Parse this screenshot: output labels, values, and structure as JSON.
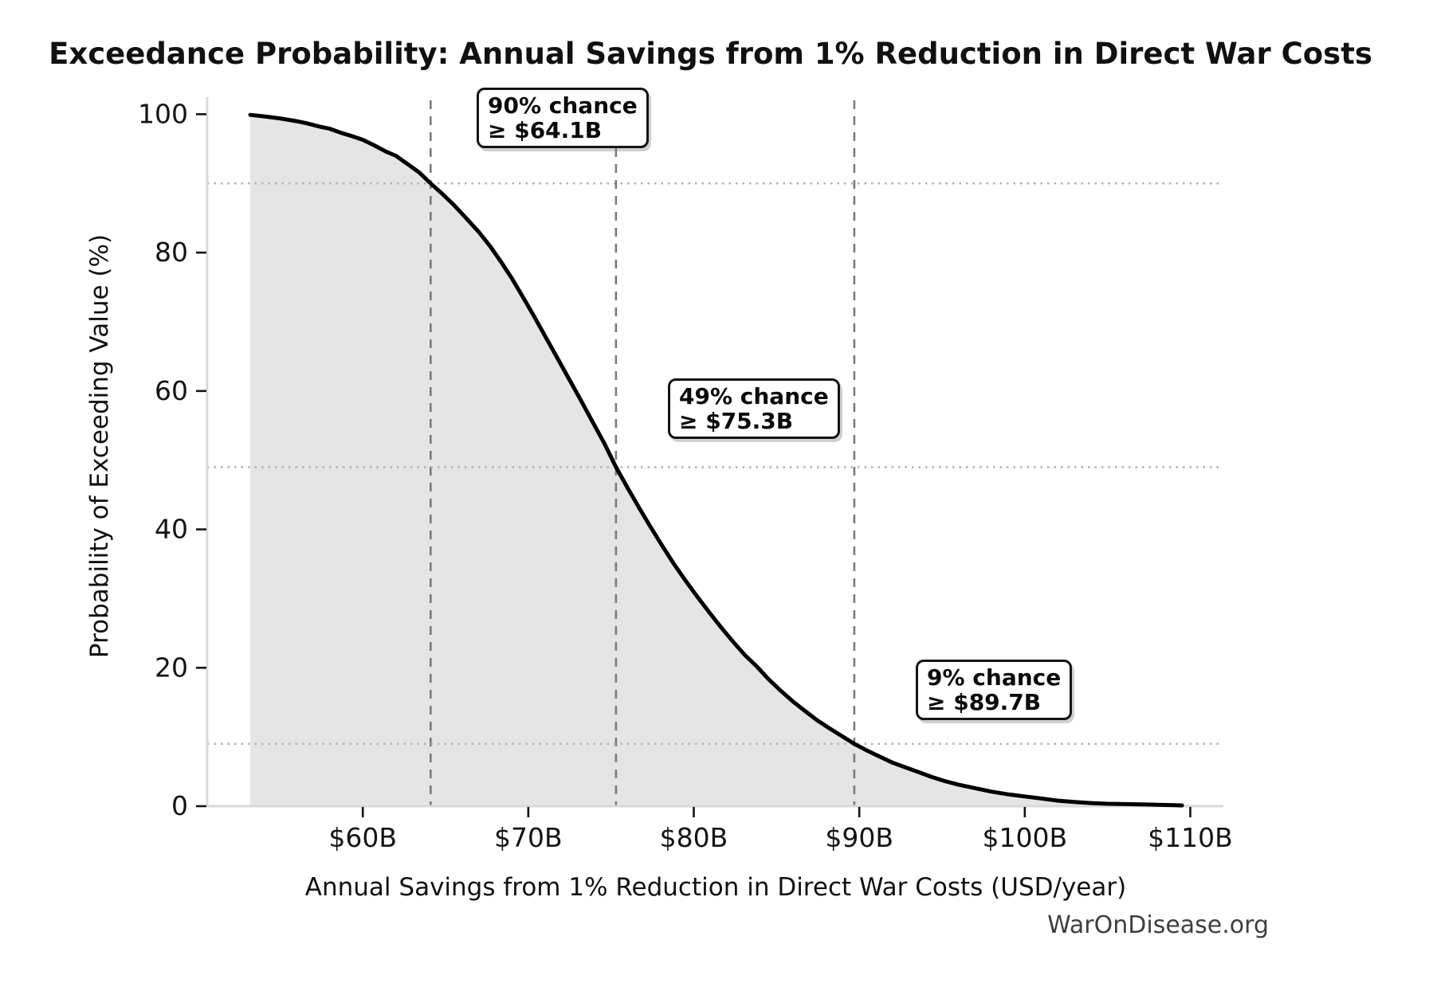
{
  "footer": {
    "watermark": "WarOnDisease.org"
  },
  "chart_data": {
    "type": "area",
    "title": "Exceedance Probability: Annual Savings from 1% Reduction in Direct War Costs",
    "xlabel": "Annual Savings from 1% Reduction in Direct War Costs (USD/year)",
    "ylabel": "Probability of Exceeding Value (%)",
    "xlim_billions": [
      50.6,
      112.0
    ],
    "ylim_pct": [
      0,
      102
    ],
    "grid": "off",
    "legend": "none",
    "x_ticks": [
      {
        "value": 60,
        "label": "$60B"
      },
      {
        "value": 70,
        "label": "$70B"
      },
      {
        "value": 80,
        "label": "$80B"
      },
      {
        "value": 90,
        "label": "$90B"
      },
      {
        "value": 100,
        "label": "$100B"
      },
      {
        "value": 110,
        "label": "$110B"
      }
    ],
    "y_ticks": [
      {
        "value": 0,
        "label": "0"
      },
      {
        "value": 20,
        "label": "20"
      },
      {
        "value": 40,
        "label": "40"
      },
      {
        "value": 60,
        "label": "60"
      },
      {
        "value": 80,
        "label": "80"
      },
      {
        "value": 100,
        "label": "100"
      }
    ],
    "series": [
      {
        "name": "exceedance-curve",
        "points_billions_vs_pct": [
          [
            53.2,
            99.9
          ],
          [
            54.0,
            99.7
          ],
          [
            55.0,
            99.4
          ],
          [
            56.0,
            99.0
          ],
          [
            56.6,
            98.7
          ],
          [
            57.4,
            98.2
          ],
          [
            58.0,
            97.9
          ],
          [
            58.7,
            97.3
          ],
          [
            59.4,
            96.8
          ],
          [
            60.0,
            96.3
          ],
          [
            60.7,
            95.5
          ],
          [
            61.4,
            94.6
          ],
          [
            62.0,
            94.0
          ],
          [
            62.7,
            92.8
          ],
          [
            63.4,
            91.6
          ],
          [
            64.1,
            90.0
          ],
          [
            64.8,
            88.5
          ],
          [
            65.5,
            86.9
          ],
          [
            66.2,
            85.1
          ],
          [
            67.0,
            83.0
          ],
          [
            67.7,
            80.9
          ],
          [
            68.4,
            78.5
          ],
          [
            69.0,
            76.3
          ],
          [
            69.6,
            73.9
          ],
          [
            70.3,
            71.0
          ],
          [
            71.0,
            68.0
          ],
          [
            71.7,
            65.0
          ],
          [
            72.4,
            62.0
          ],
          [
            73.1,
            59.0
          ],
          [
            73.8,
            55.9
          ],
          [
            74.6,
            52.4
          ],
          [
            75.3,
            49.0
          ],
          [
            76.0,
            46.0
          ],
          [
            76.7,
            43.1
          ],
          [
            77.4,
            40.3
          ],
          [
            78.1,
            37.6
          ],
          [
            78.8,
            35.0
          ],
          [
            79.5,
            32.6
          ],
          [
            80.2,
            30.3
          ],
          [
            81.0,
            27.8
          ],
          [
            81.7,
            25.7
          ],
          [
            82.4,
            23.7
          ],
          [
            83.1,
            21.8
          ],
          [
            83.8,
            20.2
          ],
          [
            84.5,
            18.4
          ],
          [
            85.2,
            16.8
          ],
          [
            86.0,
            15.1
          ],
          [
            86.7,
            13.8
          ],
          [
            87.4,
            12.5
          ],
          [
            88.1,
            11.4
          ],
          [
            88.9,
            10.2
          ],
          [
            89.7,
            9.0
          ],
          [
            90.5,
            8.0
          ],
          [
            91.2,
            7.2
          ],
          [
            92.0,
            6.3
          ],
          [
            92.8,
            5.6
          ],
          [
            93.6,
            4.9
          ],
          [
            94.4,
            4.2
          ],
          [
            95.2,
            3.6
          ],
          [
            96.0,
            3.1
          ],
          [
            97.0,
            2.6
          ],
          [
            98.0,
            2.1
          ],
          [
            99.0,
            1.7
          ],
          [
            100.0,
            1.4
          ],
          [
            101.0,
            1.1
          ],
          [
            102.0,
            0.8
          ],
          [
            103.0,
            0.6
          ],
          [
            104.0,
            0.45
          ],
          [
            105.0,
            0.35
          ],
          [
            106.0,
            0.3
          ],
          [
            107.0,
            0.25
          ],
          [
            108.0,
            0.2
          ],
          [
            109.0,
            0.15
          ],
          [
            109.5,
            0.1
          ]
        ]
      }
    ],
    "annotations": [
      {
        "prob_label": "90% chance",
        "value_label": "≥ $64.1B",
        "threshold_billions": 64.1,
        "probability_pct": 90
      },
      {
        "prob_label": "49% chance",
        "value_label": "≥ $75.3B",
        "threshold_billions": 75.3,
        "probability_pct": 49
      },
      {
        "prob_label": "9% chance",
        "value_label": "≥ $89.7B",
        "threshold_billions": 89.7,
        "probability_pct": 9
      }
    ],
    "colors": {
      "curve": "#000000",
      "area_fill": "#e5e5e5",
      "dashed_vline": "#7a7a7a",
      "dotted_hline": "#b3b3b3",
      "spine": "#d9d9d9",
      "tick": "#141414",
      "watermark": "#3f3f3f"
    }
  }
}
